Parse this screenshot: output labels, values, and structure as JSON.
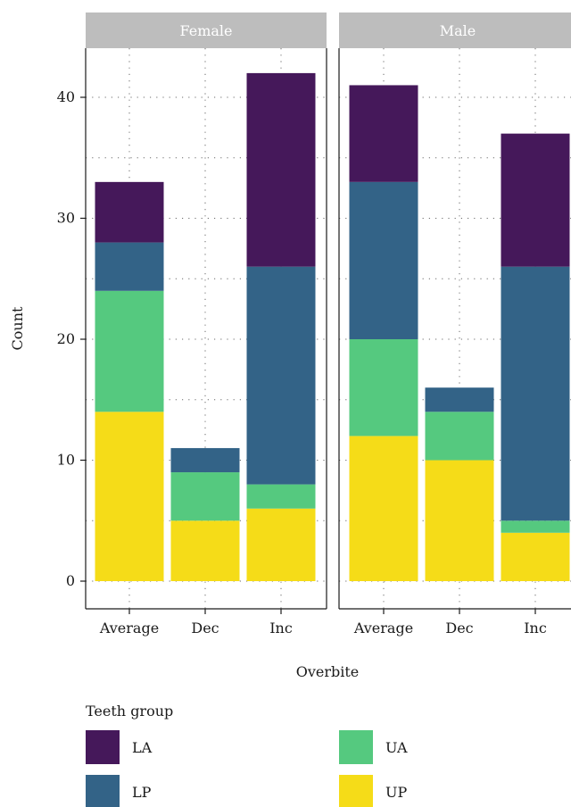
{
  "chart_data": {
    "type": "bar",
    "stacked": true,
    "xlabel": "Overbite",
    "ylabel": "Count",
    "ylim": [
      0,
      44
    ],
    "yticks": [
      0,
      10,
      20,
      30,
      40
    ],
    "categories": [
      "Average",
      "Dec",
      "Inc"
    ],
    "grid": "dotted",
    "legend": {
      "title": "Teeth group",
      "position": "bottom",
      "items": [
        {
          "label": "LA",
          "color": "#45185a"
        },
        {
          "label": "UA",
          "color": "#55c97f"
        },
        {
          "label": "LP",
          "color": "#336387"
        },
        {
          "label": "UP",
          "color": "#f5dc18"
        }
      ]
    },
    "stack_order": [
      "UP",
      "UA",
      "LP",
      "LA"
    ],
    "colors": {
      "LA": "#45185a",
      "LP": "#336387",
      "UA": "#55c97f",
      "UP": "#f5dc18"
    },
    "panels": [
      {
        "name": "Female",
        "series": [
          {
            "name": "UP",
            "values": [
              14,
              5,
              6
            ]
          },
          {
            "name": "UA",
            "values": [
              10,
              4,
              2
            ]
          },
          {
            "name": "LP",
            "values": [
              4,
              2,
              18
            ]
          },
          {
            "name": "LA",
            "values": [
              5,
              0,
              16
            ]
          }
        ]
      },
      {
        "name": "Male",
        "series": [
          {
            "name": "UP",
            "values": [
              12,
              10,
              4
            ]
          },
          {
            "name": "UA",
            "values": [
              8,
              4,
              1
            ]
          },
          {
            "name": "LP",
            "values": [
              13,
              2,
              21
            ]
          },
          {
            "name": "LA",
            "values": [
              8,
              0,
              11
            ]
          }
        ]
      }
    ]
  }
}
